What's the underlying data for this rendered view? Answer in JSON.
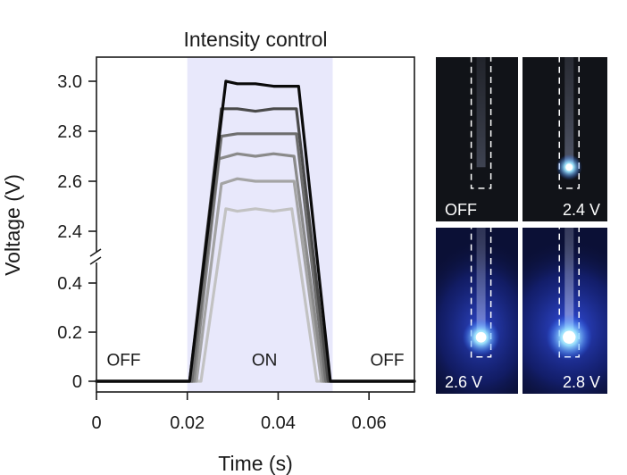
{
  "chart_data": {
    "type": "line",
    "title": "Intensity control",
    "xlabel": "Time (s)",
    "ylabel": "Voltage (V)",
    "xlim": [
      0,
      0.07
    ],
    "x_ticks": [
      "0",
      "0.02",
      "0.04",
      "0.06"
    ],
    "x_tick_values": [
      0,
      0.02,
      0.04,
      0.06
    ],
    "y_axis_break": true,
    "ylim_lower": [
      0,
      0.5
    ],
    "ylim_upper": [
      2.3,
      3.1
    ],
    "y_ticks_lower": [
      "0",
      "0.2",
      "0.4"
    ],
    "y_tick_values_lower": [
      0,
      0.2,
      0.4
    ],
    "y_ticks_upper": [
      "2.4",
      "2.6",
      "2.8",
      "3.0"
    ],
    "y_tick_values_upper": [
      2.4,
      2.6,
      2.8,
      3.0
    ],
    "on_region": [
      0.02,
      0.052
    ],
    "on_region_color": "#e8e8fb",
    "region_labels": [
      {
        "text": "OFF",
        "x": 0.006,
        "y": 0.09
      },
      {
        "text": "ON",
        "x": 0.037,
        "y": 0.09
      },
      {
        "text": "OFF",
        "x": 0.064,
        "y": 0.09
      }
    ],
    "series": [
      {
        "color": "#c2c2c2",
        "values": [
          [
            0,
            0
          ],
          [
            0.02,
            0
          ],
          [
            0.023,
            0
          ],
          [
            0.0285,
            2.49
          ],
          [
            0.031,
            2.48
          ],
          [
            0.035,
            2.49
          ],
          [
            0.039,
            2.48
          ],
          [
            0.043,
            2.49
          ],
          [
            0.0485,
            0
          ],
          [
            0.052,
            0
          ],
          [
            0.07,
            0
          ]
        ]
      },
      {
        "color": "#a4a4a4",
        "values": [
          [
            0,
            0
          ],
          [
            0.02,
            0
          ],
          [
            0.022,
            0
          ],
          [
            0.0275,
            2.59
          ],
          [
            0.031,
            2.61
          ],
          [
            0.035,
            2.6
          ],
          [
            0.039,
            2.6
          ],
          [
            0.0435,
            2.6
          ],
          [
            0.0495,
            0
          ],
          [
            0.052,
            0
          ],
          [
            0.07,
            0
          ]
        ]
      },
      {
        "color": "#8a8a8a",
        "values": [
          [
            0,
            0
          ],
          [
            0.02,
            0
          ],
          [
            0.0215,
            0
          ],
          [
            0.027,
            2.69
          ],
          [
            0.031,
            2.71
          ],
          [
            0.035,
            2.7
          ],
          [
            0.039,
            2.71
          ],
          [
            0.0435,
            2.7
          ],
          [
            0.05,
            0
          ],
          [
            0.052,
            0
          ],
          [
            0.07,
            0
          ]
        ]
      },
      {
        "color": "#6e6e6e",
        "values": [
          [
            0,
            0
          ],
          [
            0.02,
            0
          ],
          [
            0.021,
            0
          ],
          [
            0.0275,
            2.78
          ],
          [
            0.031,
            2.79
          ],
          [
            0.035,
            2.79
          ],
          [
            0.039,
            2.79
          ],
          [
            0.044,
            2.79
          ],
          [
            0.0505,
            0
          ],
          [
            0.052,
            0
          ],
          [
            0.07,
            0
          ]
        ]
      },
      {
        "color": "#4a4a4a",
        "values": [
          [
            0,
            0
          ],
          [
            0.02,
            0
          ],
          [
            0.0205,
            0
          ],
          [
            0.0275,
            2.89
          ],
          [
            0.031,
            2.89
          ],
          [
            0.035,
            2.88
          ],
          [
            0.039,
            2.89
          ],
          [
            0.044,
            2.89
          ],
          [
            0.051,
            0
          ],
          [
            0.052,
            0
          ],
          [
            0.07,
            0
          ]
        ]
      },
      {
        "color": "#0a0a0a",
        "values": [
          [
            0,
            0
          ],
          [
            0.02,
            0
          ],
          [
            0.0205,
            0
          ],
          [
            0.0285,
            3.0
          ],
          [
            0.031,
            2.99
          ],
          [
            0.035,
            2.99
          ],
          [
            0.039,
            2.98
          ],
          [
            0.0445,
            2.98
          ],
          [
            0.0515,
            0
          ],
          [
            0.052,
            0
          ],
          [
            0.07,
            0
          ]
        ]
      }
    ]
  },
  "photos": {
    "panels": [
      {
        "label": "OFF",
        "glow": 0
      },
      {
        "label": "2.4 V",
        "glow": 0.3
      },
      {
        "label": "2.6 V",
        "glow": 0.7
      },
      {
        "label": "2.8 V",
        "glow": 1.0
      }
    ],
    "glow_color": "#3b5bff",
    "core_color": "#d6f6ff"
  }
}
